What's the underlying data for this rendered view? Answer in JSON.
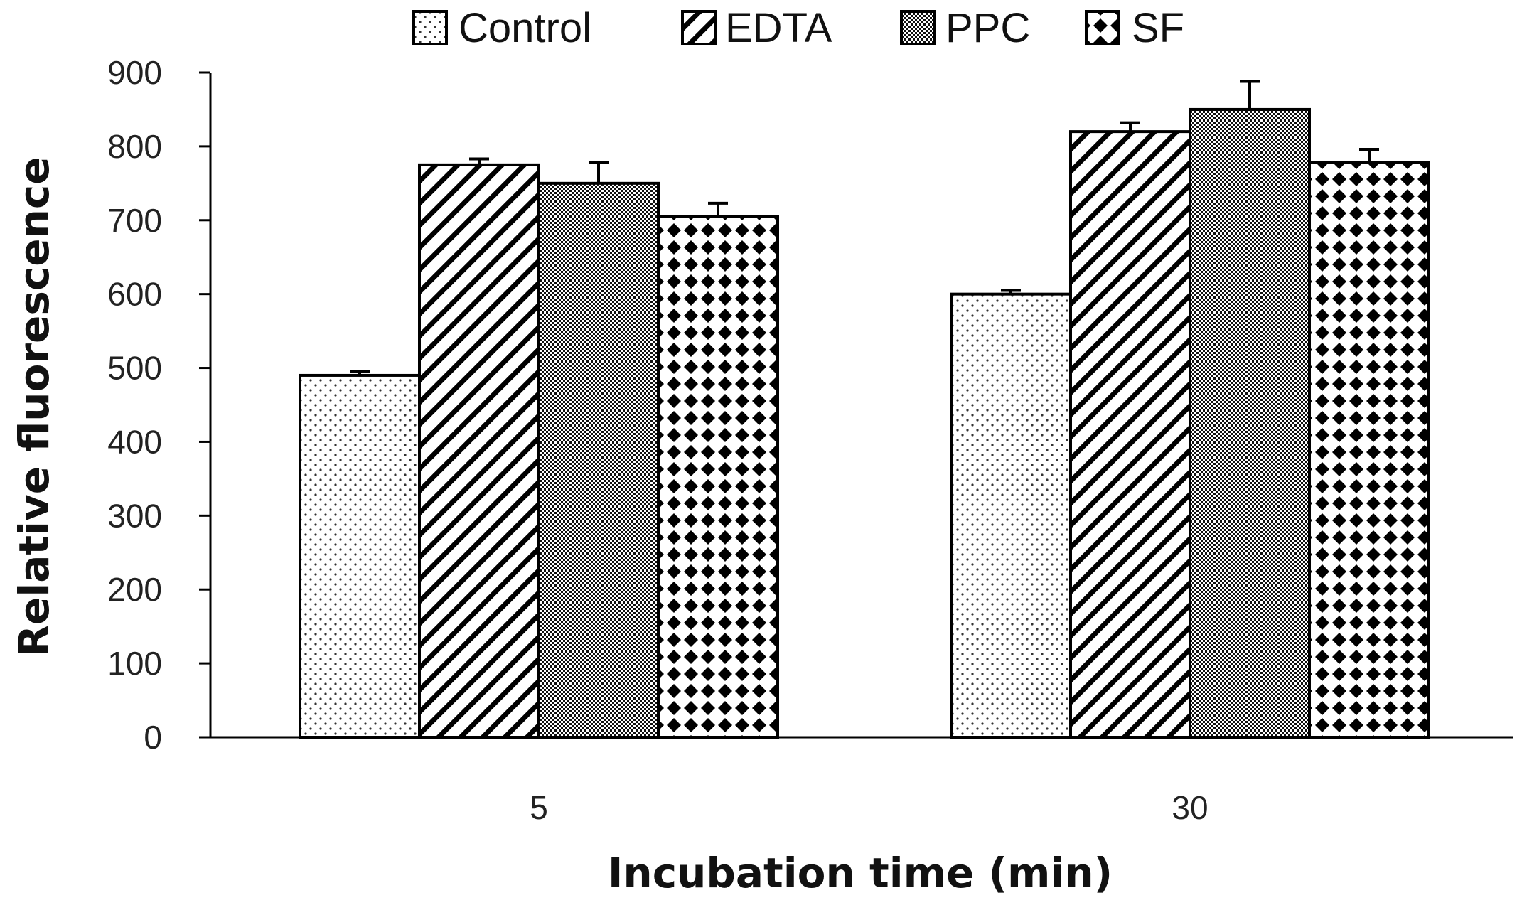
{
  "chart_data": {
    "type": "bar",
    "title": "",
    "xlabel": "Incubation time (min)",
    "ylabel": "Relative fluorescence",
    "categories": [
      "5",
      "30"
    ],
    "ylim": [
      0,
      900
    ],
    "yticks": [
      "0",
      "100",
      "200",
      "300",
      "400",
      "500",
      "600",
      "700",
      "800",
      "900"
    ],
    "grid": false,
    "legend_position": "top",
    "series": [
      {
        "name": "Control",
        "values": [
          490,
          600
        ],
        "errors": [
          5,
          5
        ],
        "pattern": "dots"
      },
      {
        "name": "EDTA",
        "values": [
          775,
          820
        ],
        "errors": [
          8,
          12
        ],
        "pattern": "diagonal"
      },
      {
        "name": "PPC",
        "values": [
          750,
          850
        ],
        "errors": [
          28,
          38
        ],
        "pattern": "dense-checker"
      },
      {
        "name": "SF",
        "values": [
          705,
          778
        ],
        "errors": [
          18,
          18
        ],
        "pattern": "diamonds"
      }
    ]
  }
}
